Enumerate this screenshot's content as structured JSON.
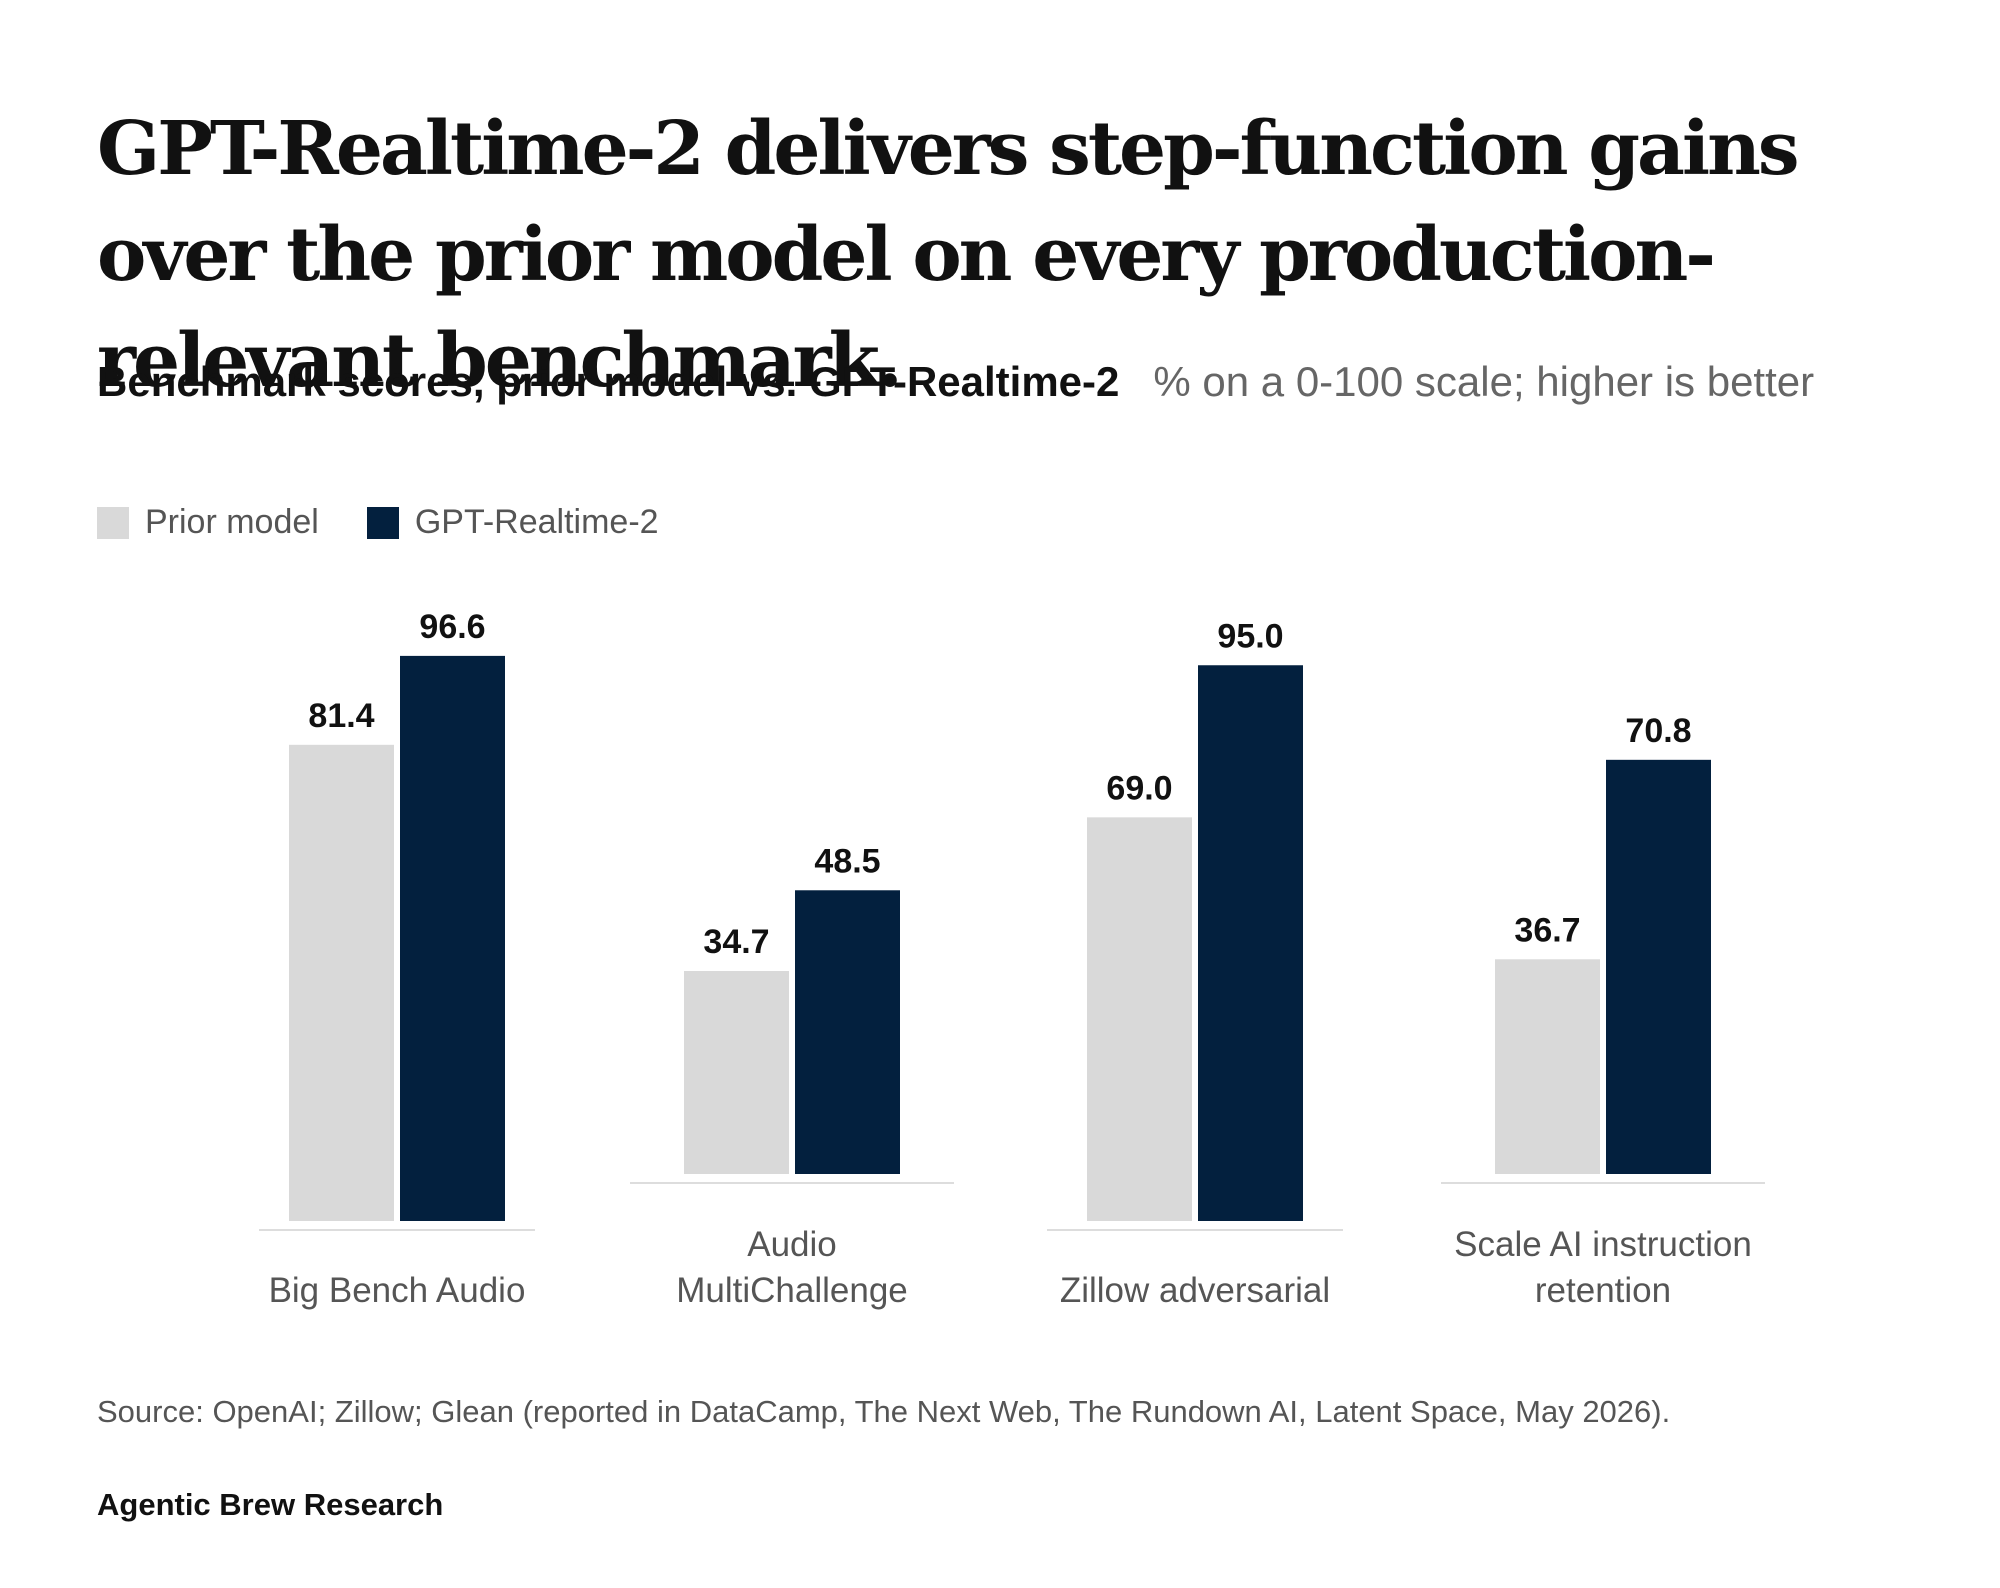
{
  "headline": "GPT-Realtime-2 delivers step-function gains over the prior model on every production-relevant benchmark.",
  "chart_data": {
    "type": "bar",
    "title": "Benchmark scores, prior model vs. GPT-Realtime-2",
    "subtitle": "% on a 0-100 scale; higher is better",
    "categories": [
      [
        "Big Bench Audio"
      ],
      [
        "Audio",
        "MultiChallenge"
      ],
      [
        "Zillow adversarial"
      ],
      [
        "Scale AI instruction",
        "retention"
      ]
    ],
    "series": [
      {
        "name": "Prior model",
        "color": "#d9d9d9",
        "values": [
          81.4,
          34.7,
          69.0,
          36.7
        ],
        "labels": [
          "81.4",
          "34.7",
          "69.0",
          "36.7"
        ]
      },
      {
        "name": "GPT-Realtime-2",
        "color": "#03203e",
        "values": [
          96.6,
          48.5,
          95.0,
          70.8
        ],
        "labels": [
          "96.6",
          "48.5",
          "95.0",
          "70.8"
        ]
      }
    ],
    "legend": "top-left",
    "grid": false
  },
  "source": "Source: OpenAI; Zillow; Glean (reported in DataCamp, The Next Web, The Rundown AI, Latent Space, May 2026).",
  "brand": "Agentic Brew Research"
}
